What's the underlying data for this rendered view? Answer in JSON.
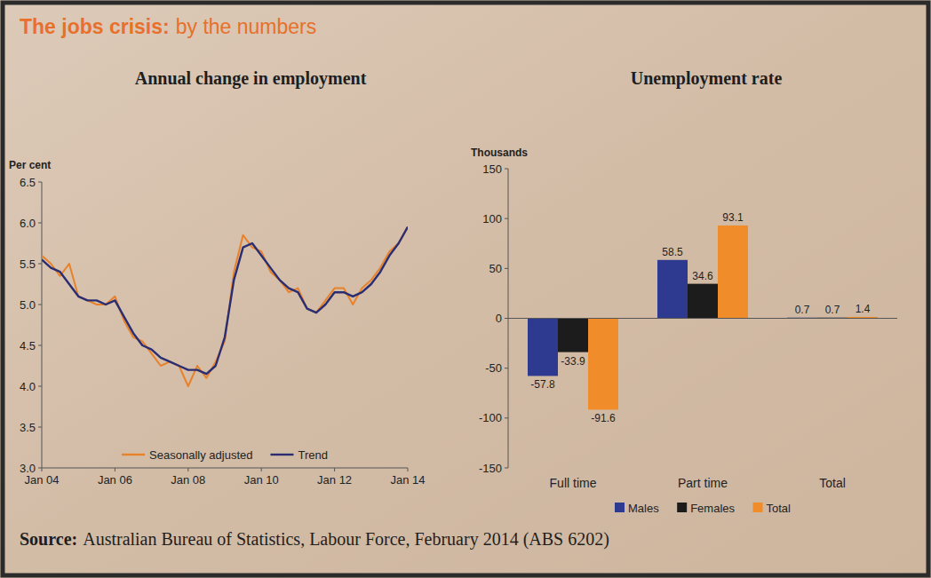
{
  "header": {
    "title": [
      "The jobs crisis:",
      "by the numbers"
    ]
  },
  "chart_data": [
    {
      "type": "line",
      "title": "Annual change in employment",
      "y_label": "Per cent",
      "categories": [
        "Jan 04",
        null,
        null,
        null,
        null,
        null,
        null,
        null,
        "Jan 06",
        null,
        null,
        null,
        null,
        null,
        null,
        null,
        "Jan 08",
        null,
        null,
        null,
        null,
        null,
        null,
        null,
        "Jan 10",
        null,
        null,
        null,
        null,
        null,
        null,
        null,
        "Jan 12",
        null,
        null,
        null,
        null,
        null,
        null,
        null,
        "Jan 14"
      ],
      "series": [
        {
          "name": "Seasonally adjusted",
          "color": "#e8822a",
          "values": [
            5.6,
            5.5,
            5.35,
            5.5,
            5.1,
            5.05,
            5.0,
            5.0,
            5.1,
            4.8,
            4.6,
            4.55,
            4.4,
            4.25,
            4.3,
            4.25,
            4.0,
            4.25,
            4.1,
            4.3,
            4.55,
            5.4,
            5.85,
            5.7,
            5.65,
            5.4,
            5.3,
            5.15,
            5.2,
            4.95,
            4.9,
            5.05,
            5.2,
            5.2,
            5.0,
            5.2,
            5.3,
            5.45,
            5.65,
            5.75,
            5.95
          ]
        },
        {
          "name": "Trend",
          "color": "#2b2d72",
          "values": [
            5.55,
            5.45,
            5.4,
            5.25,
            5.1,
            5.05,
            5.05,
            5.0,
            5.05,
            4.85,
            4.65,
            4.5,
            4.45,
            4.35,
            4.3,
            4.25,
            4.2,
            4.2,
            4.15,
            4.25,
            4.6,
            5.3,
            5.7,
            5.75,
            5.6,
            5.45,
            5.3,
            5.2,
            5.15,
            4.95,
            4.9,
            5.0,
            5.15,
            5.15,
            5.1,
            5.15,
            5.25,
            5.4,
            5.6,
            5.75,
            5.95
          ]
        }
      ],
      "ylim": [
        3,
        6.5
      ],
      "yticks": [
        {
          "value": 3,
          "label": "3.0"
        },
        3.5,
        {
          "value": 4,
          "label": "4.0"
        },
        4.5,
        {
          "value": 5,
          "label": "5.0"
        },
        5.5,
        {
          "value": 6,
          "label": "6.0"
        },
        6.5
      ],
      "grid": false,
      "legend": "bottom"
    },
    {
      "type": "bar",
      "title": "Unemployment rate",
      "y_label": "Thousands",
      "categories": [
        "Full time",
        "Part time",
        "Total"
      ],
      "series": [
        {
          "name": "Males",
          "color": "#2e3a8f",
          "values": [
            -57.8,
            58.5,
            0.7
          ]
        },
        {
          "name": "Females",
          "color": "#1c1c1c",
          "values": [
            -33.9,
            34.6,
            0.7
          ]
        },
        {
          "name": "Total",
          "color": "#f08c2a",
          "values": [
            -91.6,
            93.1,
            1.4
          ]
        }
      ],
      "ylim": [
        -150,
        150
      ],
      "yticks": [
        -150,
        -100,
        -50,
        0,
        50,
        100,
        150
      ],
      "grid": false,
      "legend": "bottom",
      "data_labels": true
    }
  ],
  "source": {
    "label": "Source:",
    "text": "Australian Bureau of Statistics, Labour Force, February 2014 (ABS 6202)"
  }
}
